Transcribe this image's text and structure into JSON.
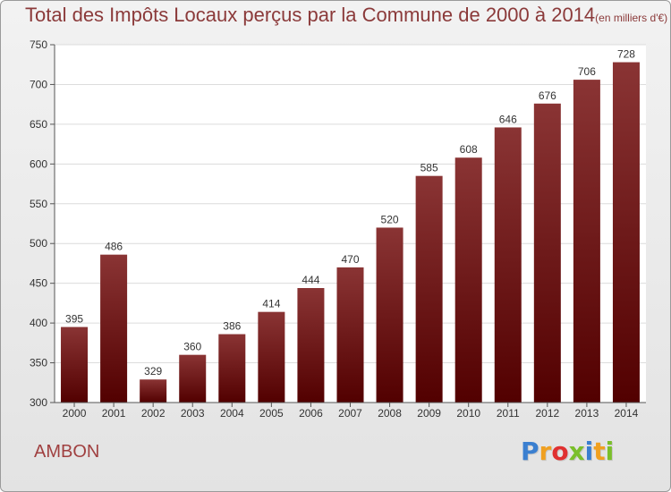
{
  "title": {
    "main": "Total des Impôts Locaux perçus par la Commune de 2000 à 2014",
    "unit": "(en milliers d'€)"
  },
  "commune": "AMBON",
  "logo": {
    "text": "Proxiti",
    "letter_colors": [
      "#3a7fd0",
      "#f0a020",
      "#e03030",
      "#7abf2a",
      "#3a7fd0",
      "#f0a020",
      "#7abf2a"
    ]
  },
  "chart_data": {
    "type": "bar",
    "title": "Total des Impôts Locaux perçus par la Commune de 2000 à 2014",
    "xlabel": "",
    "ylabel": "",
    "categories": [
      "2000",
      "2001",
      "2002",
      "2003",
      "2004",
      "2005",
      "2006",
      "2007",
      "2008",
      "2009",
      "2010",
      "2011",
      "2012",
      "2013",
      "2014"
    ],
    "values": [
      395,
      486,
      329,
      360,
      386,
      414,
      444,
      470,
      520,
      585,
      608,
      646,
      676,
      706,
      728
    ],
    "ylim": [
      300,
      750
    ],
    "yticks": [
      300,
      350,
      400,
      450,
      500,
      550,
      600,
      650,
      700,
      750
    ],
    "grid": true,
    "bar_color": "#7a1a1a"
  }
}
